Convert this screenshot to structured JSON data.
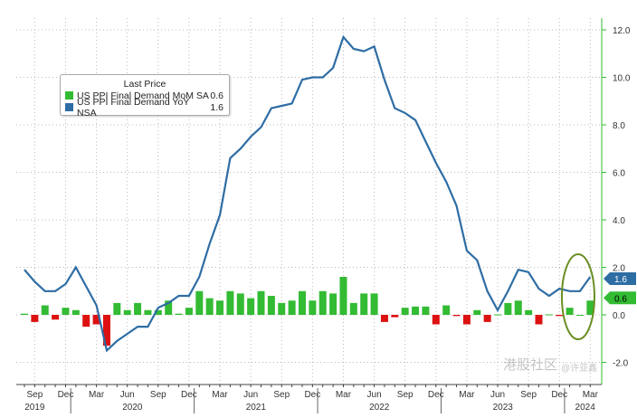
{
  "chart_data": {
    "type": "bar+line",
    "title": "",
    "legend": {
      "title": "Last Price",
      "placement": "top-left",
      "entries": [
        {
          "name": "US PPI Final Demand MoM SA",
          "value": "0.6",
          "color": "#33bb33"
        },
        {
          "name": "US PPI Final Demand YoY NSA",
          "value": "1.6",
          "color": "#2e6da4"
        }
      ]
    },
    "x_start": "2019-08",
    "x_end": "2024-03",
    "x_tick_labels": [
      {
        "label": "Sep",
        "index": 1
      },
      {
        "label": "Dec",
        "index": 4
      },
      {
        "label": "Mar",
        "index": 7
      },
      {
        "label": "Jun",
        "index": 10
      },
      {
        "label": "Sep",
        "index": 13
      },
      {
        "label": "Dec",
        "index": 16
      },
      {
        "label": "Mar",
        "index": 19
      },
      {
        "label": "Jun",
        "index": 22
      },
      {
        "label": "Sep",
        "index": 25
      },
      {
        "label": "Dec",
        "index": 28
      },
      {
        "label": "Mar",
        "index": 31
      },
      {
        "label": "Jun",
        "index": 34
      },
      {
        "label": "Sep",
        "index": 37
      },
      {
        "label": "Dec",
        "index": 40
      },
      {
        "label": "Mar",
        "index": 43
      },
      {
        "label": "Jun",
        "index": 46
      },
      {
        "label": "Sep",
        "index": 49
      },
      {
        "label": "Dec",
        "index": 52
      },
      {
        "label": "Mar",
        "index": 55
      }
    ],
    "year_labels": [
      {
        "label": "2019",
        "index": 1
      },
      {
        "label": "2020",
        "index": 10.5
      },
      {
        "label": "2021",
        "index": 22.5
      },
      {
        "label": "2022",
        "index": 34.5
      },
      {
        "label": "2023",
        "index": 46.5
      },
      {
        "label": "2024",
        "index": 54.5
      }
    ],
    "year_separators": [
      5,
      17,
      29,
      41,
      53
    ],
    "ylim": [
      -2.6,
      12.6
    ],
    "y_ticks": [
      "12.0",
      "10.0",
      "8.0",
      "6.0",
      "4.0",
      "2.0",
      "0.0",
      "-2.0"
    ],
    "y_tick_values": [
      12,
      10,
      8,
      6,
      4,
      2,
      0,
      -2
    ],
    "series": [
      {
        "name": "US PPI Final Demand MoM SA",
        "type": "bar",
        "last_label": "0.6",
        "values": [
          0.05,
          -0.3,
          0.4,
          -0.2,
          0.3,
          0.2,
          -0.5,
          -0.4,
          -1.3,
          0.5,
          0.2,
          0.5,
          0.2,
          0.2,
          0.6,
          0.05,
          0.3,
          1.0,
          0.7,
          0.6,
          1.0,
          0.9,
          0.7,
          1.0,
          0.8,
          0.5,
          0.6,
          1.0,
          0.6,
          1.0,
          0.9,
          1.6,
          0.5,
          0.9,
          0.9,
          -0.3,
          -0.1,
          0.3,
          0.35,
          0.35,
          -0.4,
          0.4,
          -0.05,
          -0.4,
          0.2,
          -0.3,
          0.02,
          0.5,
          0.6,
          0.2,
          -0.4,
          0.02,
          -0.05,
          0.3,
          0.0,
          0.6
        ]
      },
      {
        "name": "US PPI Final Demand YoY NSA",
        "type": "line",
        "last_label": "1.6",
        "values": [
          1.9,
          1.4,
          1.0,
          1.0,
          1.3,
          2.0,
          1.2,
          0.4,
          -1.5,
          -1.1,
          -0.8,
          -0.5,
          -0.5,
          0.3,
          0.5,
          0.8,
          0.8,
          1.6,
          3.0,
          4.2,
          6.6,
          7.0,
          7.5,
          7.9,
          8.7,
          8.8,
          8.9,
          9.9,
          10.0,
          10.0,
          10.4,
          11.7,
          11.2,
          11.1,
          11.3,
          9.9,
          8.7,
          8.5,
          8.2,
          7.3,
          6.4,
          5.6,
          4.6,
          2.7,
          2.3,
          1.0,
          0.2,
          1.0,
          1.9,
          1.8,
          1.1,
          0.8,
          1.1,
          1.0,
          1.0,
          1.6
        ]
      }
    ],
    "annotation": "ellipse highlighting latest months"
  },
  "watermark": {
    "text1": "港股社区",
    "text2": "@许亚鑫"
  }
}
